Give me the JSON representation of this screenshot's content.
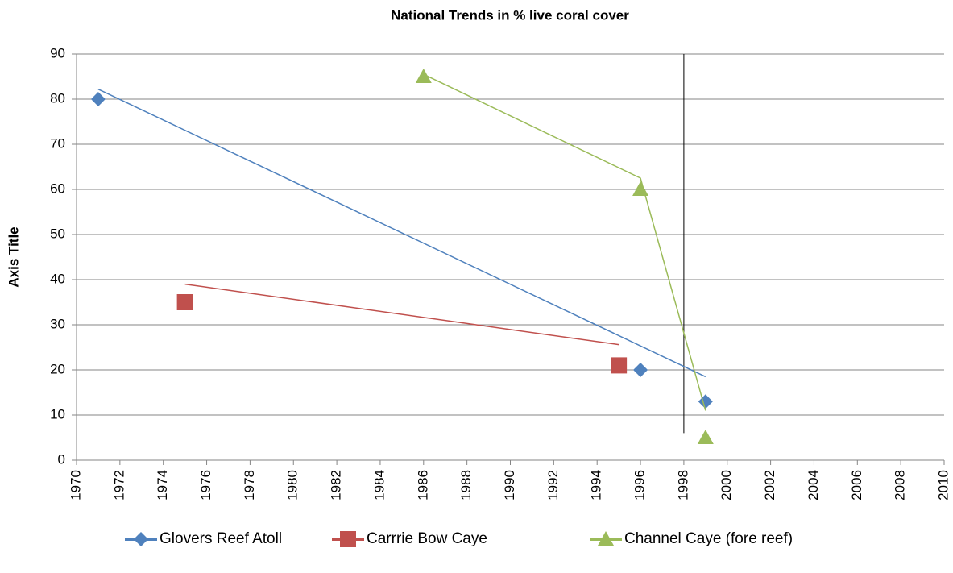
{
  "chart_data": {
    "type": "scatter",
    "title": "National Trends in % live coral cover",
    "y_label": "Axis Title",
    "xlim": [
      1970,
      2010
    ],
    "xticks": [
      1970,
      1972,
      1974,
      1976,
      1978,
      1980,
      1982,
      1984,
      1986,
      1988,
      1990,
      1992,
      1994,
      1996,
      1998,
      2000,
      2002,
      2004,
      2006,
      2008,
      2010
    ],
    "ylim": [
      0,
      90
    ],
    "yticks": [
      0,
      10,
      20,
      30,
      40,
      50,
      60,
      70,
      80,
      90
    ],
    "grid": true,
    "legend": "bottom",
    "series": [
      {
        "name": "Glovers Reef Atoll",
        "color": "#4f81bd",
        "marker": "diamond",
        "x": [
          1971,
          1996,
          1999
        ],
        "values": [
          80,
          20,
          13
        ],
        "trend": {
          "x": [
            1971,
            1999
          ],
          "values": [
            82.2,
            18.5
          ]
        }
      },
      {
        "name": "Carrrie Bow Caye",
        "color": "#c0504d",
        "marker": "square",
        "x": [
          1975,
          1995
        ],
        "values": [
          35,
          21
        ],
        "trend": {
          "x": [
            1975,
            1995
          ],
          "values": [
            39,
            25.6
          ]
        }
      },
      {
        "name": "Channel Caye (fore reef)",
        "color": "#9bbb59",
        "marker": "triangle",
        "x": [
          1986,
          1996,
          1999
        ],
        "values": [
          85,
          60,
          5
        ],
        "trend": {
          "x": [
            1986,
            1996,
            1999
          ],
          "values": [
            85.5,
            62.5,
            11
          ]
        }
      }
    ],
    "reference_line": {
      "x": 1998,
      "y": [
        6,
        90
      ]
    }
  }
}
